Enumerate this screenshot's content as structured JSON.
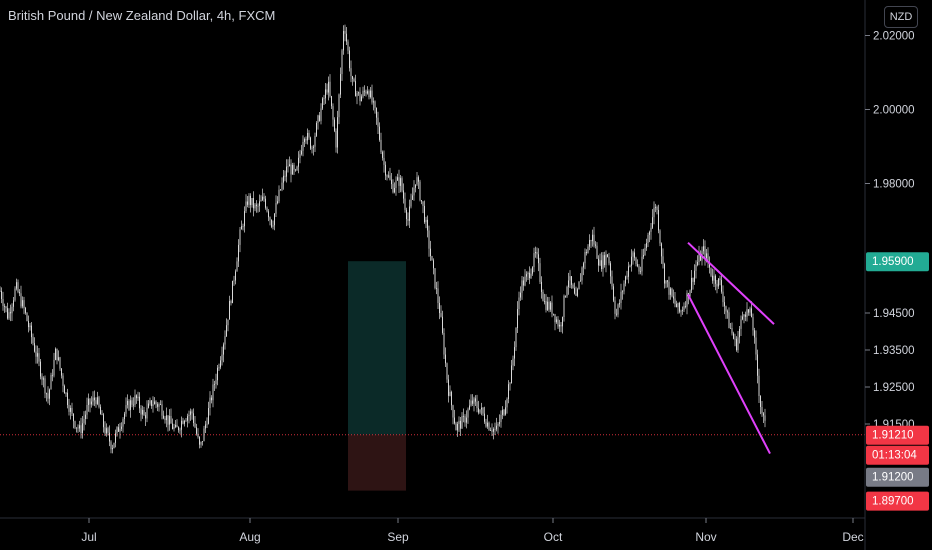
{
  "header": {
    "title": "British Pound / New Zealand Dollar, 4h, FXCM",
    "currency": "NZD"
  },
  "colors": {
    "background": "#000000",
    "candle": "#d9d9d9",
    "trendline": "#e040fb",
    "current_price_line": "#f23645",
    "profit_zone": "#0b2a28",
    "loss_zone": "#2e1414",
    "green_tag": "#22ab94",
    "red_tag": "#f23645",
    "gray_tag": "#787b86"
  },
  "chart_data": {
    "type": "candlestick",
    "symbol": "GBPNZD",
    "timeframe": "4h",
    "y_ticks": [
      "2.02000",
      "2.00000",
      "1.98000",
      "1.94500",
      "1.93500",
      "1.92500",
      "1.91500"
    ],
    "x_ticks": [
      "Jul",
      "Aug",
      "Sep",
      "Oct",
      "Nov",
      "Dec"
    ],
    "price_path": [
      [
        0,
        1.951
      ],
      [
        8,
        1.944
      ],
      [
        16,
        1.952
      ],
      [
        24,
        1.946
      ],
      [
        32,
        1.938
      ],
      [
        40,
        1.93
      ],
      [
        48,
        1.922
      ],
      [
        56,
        1.935
      ],
      [
        64,
        1.925
      ],
      [
        72,
        1.917
      ],
      [
        80,
        1.913
      ],
      [
        88,
        1.92
      ],
      [
        96,
        1.922
      ],
      [
        104,
        1.914
      ],
      [
        112,
        1.909
      ],
      [
        120,
        1.915
      ],
      [
        128,
        1.92
      ],
      [
        136,
        1.922
      ],
      [
        144,
        1.917
      ],
      [
        152,
        1.921
      ],
      [
        160,
        1.92
      ],
      [
        168,
        1.916
      ],
      [
        176,
        1.913
      ],
      [
        184,
        1.917
      ],
      [
        192,
        1.918
      ],
      [
        200,
        1.908
      ],
      [
        208,
        1.918
      ],
      [
        216,
        1.928
      ],
      [
        224,
        1.938
      ],
      [
        232,
        1.951
      ],
      [
        240,
        1.966
      ],
      [
        248,
        1.976
      ],
      [
        256,
        1.973
      ],
      [
        264,
        1.976
      ],
      [
        272,
        1.969
      ],
      [
        280,
        1.978
      ],
      [
        288,
        1.985
      ],
      [
        296,
        1.982
      ],
      [
        304,
        1.994
      ],
      [
        312,
        1.99
      ],
      [
        320,
        1.999
      ],
      [
        328,
        2.007
      ],
      [
        336,
        1.991
      ],
      [
        344,
        2.024
      ],
      [
        352,
        2.007
      ],
      [
        360,
        2.003
      ],
      [
        368,
        2.006
      ],
      [
        376,
        1.998
      ],
      [
        384,
        1.985
      ],
      [
        392,
        1.979
      ],
      [
        400,
        1.981
      ],
      [
        408,
        1.97
      ],
      [
        416,
        1.982
      ],
      [
        424,
        1.972
      ],
      [
        432,
        1.958
      ],
      [
        440,
        1.945
      ],
      [
        448,
        1.925
      ],
      [
        456,
        1.914
      ],
      [
        464,
        1.916
      ],
      [
        472,
        1.921
      ],
      [
        480,
        1.919
      ],
      [
        488,
        1.915
      ],
      [
        496,
        1.913
      ],
      [
        504,
        1.919
      ],
      [
        512,
        1.93
      ],
      [
        520,
        1.952
      ],
      [
        528,
        1.955
      ],
      [
        536,
        1.961
      ],
      [
        544,
        1.948
      ],
      [
        552,
        1.946
      ],
      [
        560,
        1.941
      ],
      [
        568,
        1.955
      ],
      [
        576,
        1.948
      ],
      [
        584,
        1.96
      ],
      [
        592,
        1.966
      ],
      [
        600,
        1.958
      ],
      [
        608,
        1.961
      ],
      [
        616,
        1.944
      ],
      [
        624,
        1.953
      ],
      [
        632,
        1.961
      ],
      [
        640,
        1.956
      ],
      [
        648,
        1.966
      ],
      [
        656,
        1.975
      ],
      [
        664,
        1.955
      ],
      [
        672,
        1.949
      ],
      [
        680,
        1.945
      ],
      [
        688,
        1.95
      ],
      [
        696,
        1.958
      ],
      [
        704,
        1.962
      ],
      [
        712,
        1.955
      ],
      [
        720,
        1.953
      ],
      [
        728,
        1.943
      ],
      [
        736,
        1.936
      ],
      [
        744,
        1.946
      ],
      [
        752,
        1.944
      ],
      [
        760,
        1.921
      ],
      [
        766,
        1.913
      ]
    ],
    "trendlines": [
      {
        "from": [
          688,
          1.964
        ],
        "to": [
          774,
          1.942
        ]
      },
      {
        "from": [
          688,
          1.95
        ],
        "to": [
          770,
          1.907
        ]
      }
    ],
    "position_zone": {
      "x_range": [
        348,
        406
      ],
      "target": 1.959,
      "entry": 1.9121,
      "stop": 1.897
    },
    "current_price": 1.9121,
    "price_tags": {
      "target": "1.95900",
      "current": "1.91210",
      "countdown": "01:13:04",
      "last": "1.91200",
      "stop": "1.89700"
    }
  }
}
